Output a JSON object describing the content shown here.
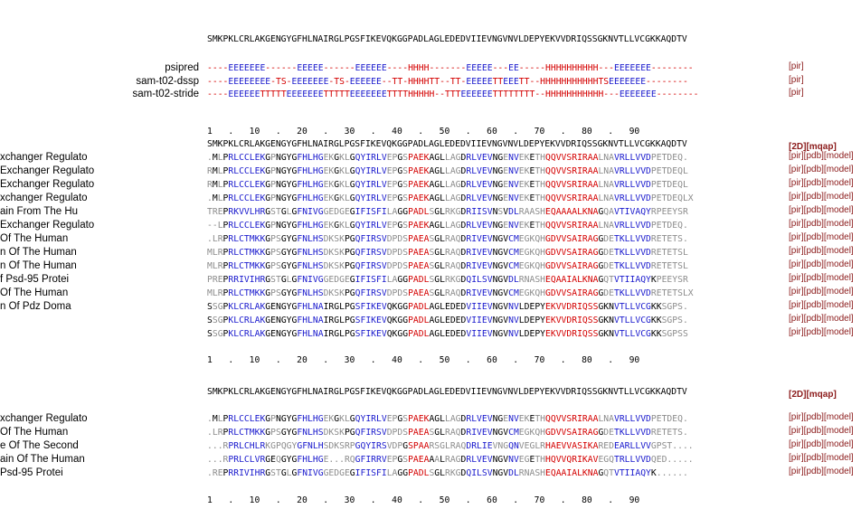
{
  "query_sequence": "SMKPKLCRLAKGENGYGFHLNAIRGLPGSFIKEVQKGGPADLAGLEDEDVIIEVNGVNVLDEPYEKVVDRIQSSGKNVTLLVCGKKAQDTV",
  "ruler": "1   .   10   .   20   .   30   .   40   .   50   .   60   .   70   .   80   .   90",
  "secondary_structure": [
    {
      "label": "psipred",
      "sequence": "----EEEEEEE------EEEEE------EEEEEE----HHHH-------EEEEE---EE-----HHHHHHHHHH---EEEEEEE--------",
      "links": "[pir]"
    },
    {
      "label": "sam-t02-dssp",
      "sequence": "----EEEEEEEE-TS-EEEEEEE-TS-EEEEEE--TT-HHHHTT--TT-EEEEETTEEETT--HHHHHHHHHHHTSEEEEEEE--------",
      "links": "[pir]"
    },
    {
      "label": "sam-t02-stride",
      "sequence": "----EEEEEETTTTTEEEEEEETTTTTEEEEEEETTTTHHHHH--TTTEEEEEETTTTTTTT--HHHHHHHHHHH---EEEEEEE--------",
      "links": "[pir]"
    }
  ],
  "header_links": "[2D][mqap]",
  "alignment_1": [
    {
      "label": "xchanger Regulato",
      "sequence": ".MLPRLCCLEKGPNGYGFHLHGEKGKLGQYIRLVEPGSPAEKAGLLAGDRLVEVNGENVEKETHQQVVSRIRAALNAVRLLVVDPETDEQ.",
      "links": "[pir][pdb][model]"
    },
    {
      "label": "Exchanger Regulato",
      "sequence": "RMLPRLCCLEKGPNGYGFHLHGEKGKLGQYIRLVEPGSPAEKAGLLAGDRLVEVNGENVEKETHQQVVSRIRAALNAVRLLVVDPETDEQL",
      "links": "[pir][pdb][model]"
    },
    {
      "label": "Exchanger Regulato",
      "sequence": "RMLPRLCCLEKGPNGYGFHLHGEKGKLGQYIRLVEPGSPAEKAGLLAGDRLVEVNGENVEKETHQQVVSRIRAALNAVRLLVVDPETDEQL",
      "links": "[pir][pdb][model]"
    },
    {
      "label": "xchanger Regulato",
      "sequence": ".MLPRLCCLEKGPNGYGFHLHGEKGKLGQYIRLVEPGSPAEKAGLLAGDRLVEVNGENVEKETHQQVVSRIRAALNAVRLLVVDPETDEQLX",
      "links": "[pir][pdb][model]"
    },
    {
      "label": "ain From The Hu",
      "sequence": "TREPRKVVLHRGSTGLGFNIVGGEDGEGIFISFILAGGPADLSGLRKGDRIISVNSVDLRAASHEQAAAALKNAGQAVTIVAQYRPEEYSR",
      "links": "[pir][pdb][model]"
    },
    {
      "label": "Exchanger Regulato",
      "sequence": "--LPRLCCLEKGPNGYGFHLHGEKGKLGQYIRLVEPGSPAEKAGLLAGDRLVEVNGENVEKETHQQVVSRIRAALNAVRLLVVDPETDEQ.",
      "links": "[pir][pdb][model]"
    },
    {
      "label": "Of The Human",
      "sequence": ".LRPRLCTMKKGPSGYGFNLHSDKSKPGQFIRSVDPDSPAEASGLRAQDRIVEVNGVCMEGKQHGDVVSAIRAGGDETKLLVVDRETETS.",
      "links": "[pir][pdb][model]"
    },
    {
      "label": "n Of The Human",
      "sequence": "MLRPRLCTMKKGPSGYGFNLHSDKSKPGQFIRSVDPDSPAEASGLRAQDRIVEVNGVCMEGKQHGDVVSAIRAGGDETKLLVVDRETETSL",
      "links": "[pir][pdb][model]"
    },
    {
      "label": "n Of The Human",
      "sequence": "MLRPRLCTMKKGPSGYGFNLHSDKSKPGQFIRSVDPDSPAEASGLRAQDRIVEVNGVCMEGKQHGDVVSAIRAGGDETKLLVVDRETETSL",
      "links": "[pir][pdb][model]"
    },
    {
      "label": "f Psd-95 Protei",
      "sequence": "PREPRRIVIHRGSTGLGFNIVGGEDGEGIFISFILAGGPADLSGLRKGDQILSVNGVDLRNASHEQAAIALKNAGQTVTIIAQYKPEEYSR",
      "links": "[pir][pdb][model]"
    },
    {
      "label": "Of The Human",
      "sequence": "MLRPRLCTMKKGPSGYGFNLHSDKSKPGQFIRSVDPDSPAEASGLRAQDRIVEVNGVCMEGKQHGDVVSAIRAGGDETKLLVVDRETETSLX",
      "links": "[pir][pdb][model]"
    },
    {
      "label": "n Of Pdz Doma",
      "sequence": "SSGPKLCRLAKGENGYGFHLNAIRGLPGSFIKEVQKGGPADLAGLEDEDVIIEVNGVNVLDEPYEKVVDRIQSSGKNVTLLVCGKKSGPS.",
      "links": "[pir][pdb][model]"
    },
    {
      "label": "",
      "sequence": "SSGPKLCRLAKGENGYGFHLNAIRGLPGSFIKEVQKGGPADLAGLEDEDVIIEVNGVNVLDEPYEKVVDRIQSSGKNVTLLVCGKKSGPS.",
      "links": "[pir][pdb][model]"
    },
    {
      "label": "",
      "sequence": "SSGPKLCRLAKGENGYGFHLNAIRGLPGSFIKEVQKGGPADLAGLEDEDVIIEVNGVNVLDEPYEKVVDRIQSSGKNVTLLVCGKKSGPSS",
      "links": "[pir][pdb][model]"
    }
  ],
  "alignment_2": [
    {
      "label": "xchanger Regulato",
      "sequence": ".MLPRLCCLEKGPNGYGFHLHGEKGKLGQYIRLVEPGSPAEKAGLLAGDRLVEVNGENVEKETHQQVVSRIRAALNAVRLLVVDPETDEQ.",
      "links": "[pir][pdb][model]"
    },
    {
      "label": "Of The Human",
      "sequence": ".LRPRLCTMKKGPSGYGFNLHSDKSKPGQFIRSVDPDSPAEASGLRAQDRIVEVNGVCMEGKQHGDVVSAIRAGGDETKLLVVDRETETS.",
      "links": "[pir][pdb][model]"
    },
    {
      "label": "e Of The Second",
      "sequence": "...RPRLCHLRKGPQGYGFNLHSDKSRPGQYIRSVDPGSPAARSGLRAQDRLIEVNGQNVEGLRHAEVVASIKAREDEARLLVVGPST....",
      "links": "[pir][pdb][model]"
    },
    {
      "label": "ain Of The Human",
      "sequence": "...RPRLCLVRGEQGYGFHLHGE...RQGFIRRVEPGSPAEAAALRAGDRLVEVNGVNVEGETHHQVVQRIKAVEGQTRLLVVDQED.....",
      "links": "[pir][pdb][model]"
    },
    {
      "label": "Psd-95 Protei",
      "sequence": ".REPRRIVIHRGSTGLGFNIVGGEDGEGIFISFILAGGPADLSGLRKGDQILSVNGVDLRNASHEQAAIALKNAGQTVTIIAQYK......",
      "links": "[pir][pdb][model]"
    }
  ],
  "colors": {
    "helix": "#d40000",
    "strand": "#1a1acd",
    "identical": "#000000",
    "gap": "#8c8c8c",
    "links": "#8b1a1a"
  }
}
